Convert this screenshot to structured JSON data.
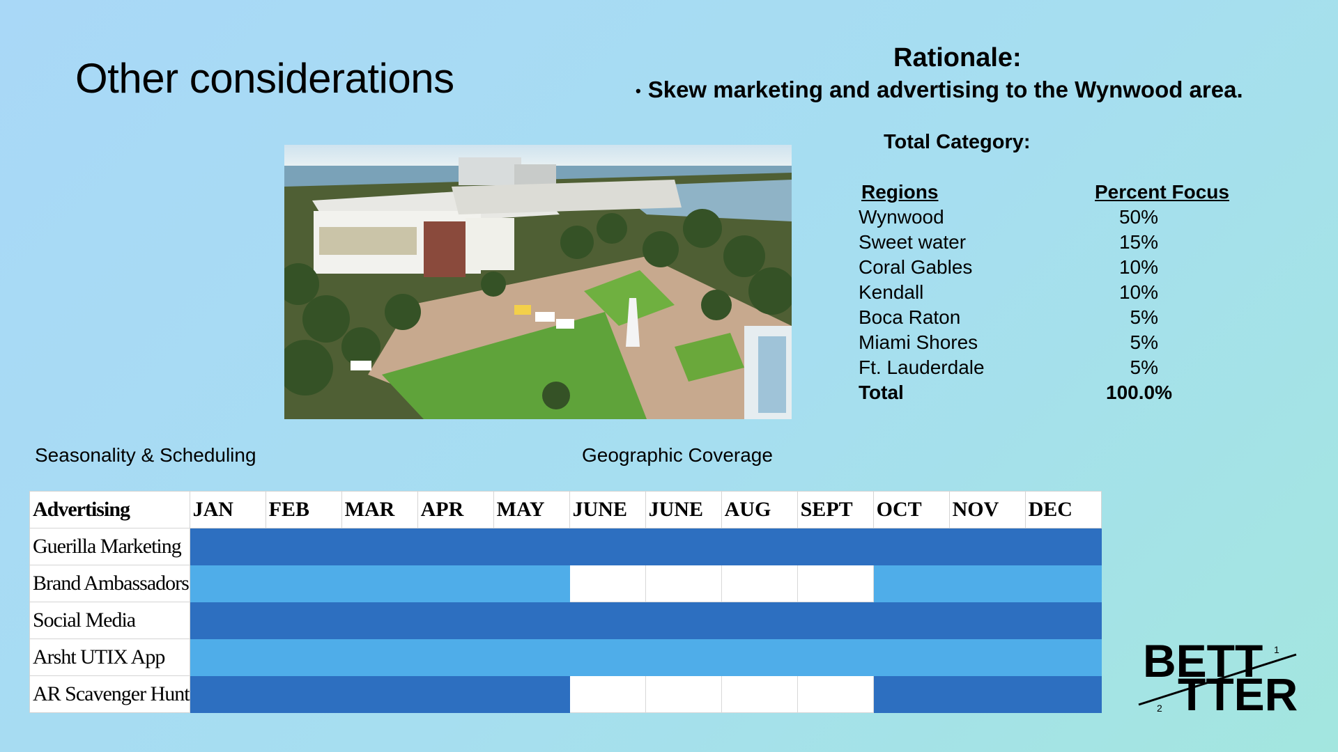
{
  "slide": {
    "title": "Other considerations",
    "rationale": {
      "heading": "Rationale:",
      "bullet": "Skew marketing and advertising to the Wynwood area."
    },
    "total_category_label": "Total Category:"
  },
  "regions_table": {
    "col_region": "Regions",
    "col_percent": "Percent Focus",
    "rows": [
      {
        "region": "Wynwood",
        "percent": "50%"
      },
      {
        "region": "Sweet water",
        "percent": "15%"
      },
      {
        "region": "Coral Gables",
        "percent": "10%"
      },
      {
        "region": "Kendall",
        "percent": "10%"
      },
      {
        "region": "Boca Raton",
        "percent": "5%"
      },
      {
        "region": "Miami Shores",
        "percent": "5%"
      },
      {
        "region": "Ft. Lauderdale",
        "percent": "5%"
      }
    ],
    "total": {
      "region": "Total",
      "percent": "100.0%"
    }
  },
  "labels": {
    "seasonality": "Seasonality & Scheduling",
    "geographic": "Geographic Coverage"
  },
  "schedule": {
    "corner": "Advertising",
    "months": [
      "JAN",
      "FEB",
      "MAR",
      "APR",
      "MAY",
      "JUNE",
      "JUNE",
      "AUG",
      "SEPT",
      "OCT",
      "NOV",
      "DEC"
    ],
    "rows": [
      {
        "name": "Guerilla Marketing",
        "cells": [
          "dark",
          "dark",
          "dark",
          "dark",
          "dark",
          "dark",
          "dark",
          "dark",
          "dark",
          "dark",
          "dark",
          "dark"
        ]
      },
      {
        "name": "Brand Ambassadors",
        "cells": [
          "light",
          "light",
          "light",
          "light",
          "light",
          "white",
          "white",
          "white",
          "white",
          "light",
          "light",
          "light"
        ]
      },
      {
        "name": "Social Media",
        "cells": [
          "dark",
          "dark",
          "dark",
          "dark",
          "dark",
          "dark",
          "dark",
          "dark",
          "dark",
          "dark",
          "dark",
          "dark"
        ]
      },
      {
        "name": "Arsht UTIX App",
        "cells": [
          "light",
          "light",
          "light",
          "light",
          "light",
          "light",
          "light",
          "light",
          "light",
          "light",
          "light",
          "light"
        ]
      },
      {
        "name": "AR Scavenger Hunt",
        "cells": [
          "dark",
          "dark",
          "dark",
          "dark",
          "dark",
          "white",
          "white",
          "white",
          "white",
          "dark",
          "dark",
          "dark"
        ]
      }
    ]
  },
  "logo": {
    "top": "BETT",
    "bottom": "TTER",
    "sup": "1",
    "sub": "2"
  }
}
